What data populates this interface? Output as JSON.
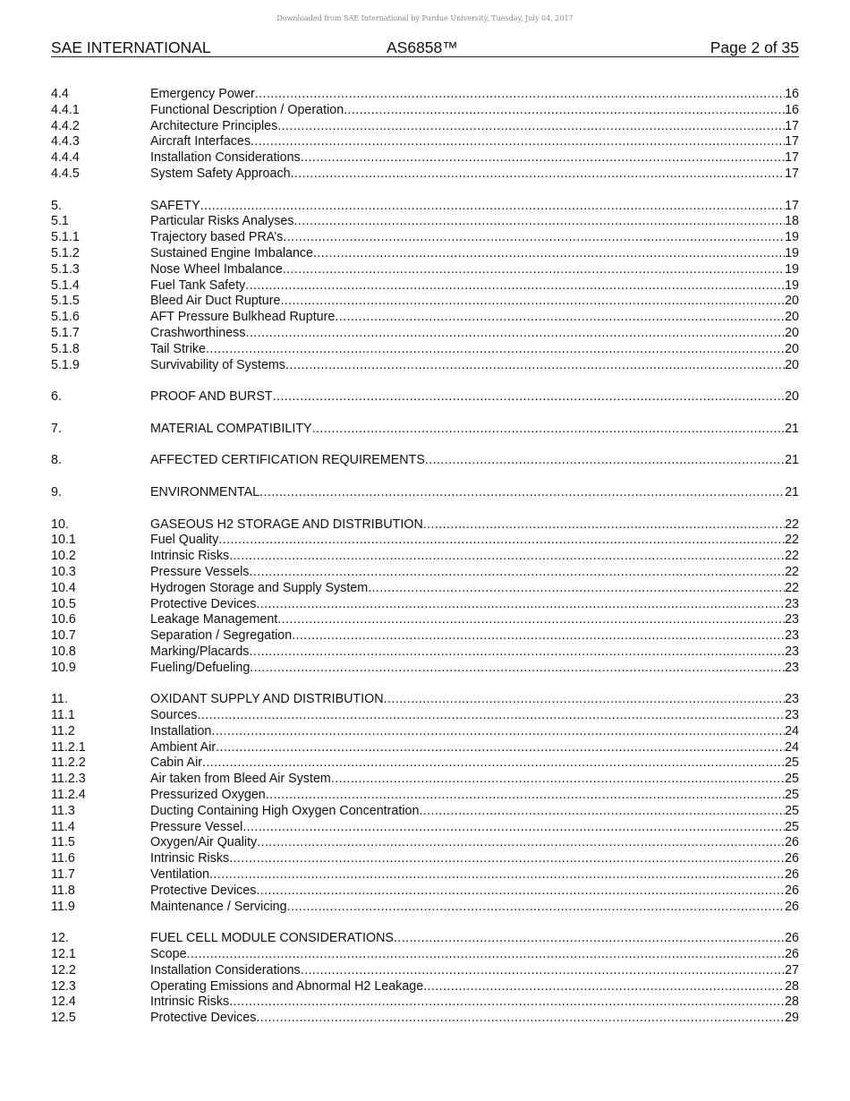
{
  "watermark": "Downloaded from SAE International by Purdue University, Tuesday, July 04, 2017",
  "header": {
    "org": "SAE INTERNATIONAL",
    "doc": "AS6858™",
    "page": "Page 2 of 35"
  },
  "toc": [
    {
      "n": "4.4",
      "t": "Emergency Power",
      "p": "16"
    },
    {
      "n": "4.4.1",
      "t": "Functional Description / Operation",
      "p": "16"
    },
    {
      "n": "4.4.2",
      "t": "Architecture Principles",
      "p": "17"
    },
    {
      "n": "4.4.3",
      "t": "Aircraft Interfaces",
      "p": "17"
    },
    {
      "n": "4.4.4",
      "t": "Installation Considerations",
      "p": "17"
    },
    {
      "n": "4.4.5",
      "t": "System Safety Approach",
      "p": "17"
    },
    {},
    {
      "n": "5.",
      "t": "SAFETY",
      "p": "17"
    },
    {
      "n": "5.1",
      "t": "Particular Risks Analyses",
      "p": "18"
    },
    {
      "n": "5.1.1",
      "t": "Trajectory based PRA’s",
      "p": "19"
    },
    {
      "n": "5.1.2",
      "t": "Sustained Engine Imbalance",
      "p": "19"
    },
    {
      "n": "5.1.3",
      "t": "Nose Wheel Imbalance",
      "p": "19"
    },
    {
      "n": "5.1.4",
      "t": "Fuel Tank Safety",
      "p": "19"
    },
    {
      "n": "5.1.5",
      "t": "Bleed Air Duct Rupture",
      "p": "20"
    },
    {
      "n": "5.1.6",
      "t": "AFT Pressure Bulkhead Rupture",
      "p": "20"
    },
    {
      "n": "5.1.7",
      "t": "Crashworthiness",
      "p": "20"
    },
    {
      "n": "5.1.8",
      "t": "Tail Strike",
      "p": "20"
    },
    {
      "n": "5.1.9",
      "t": "Survivability of Systems",
      "p": "20"
    },
    {},
    {
      "n": "6.",
      "t": "PROOF AND BURST",
      "p": "20"
    },
    {},
    {
      "n": "7.",
      "t": "MATERIAL COMPATIBILITY",
      "p": "21"
    },
    {},
    {
      "n": "8.",
      "t": "AFFECTED CERTIFICATION REQUIREMENTS",
      "p": "21"
    },
    {},
    {
      "n": "9.",
      "t": "ENVIRONMENTAL",
      "p": "21"
    },
    {},
    {
      "n": "10.",
      "t": "GASEOUS H2 STORAGE AND DISTRIBUTION",
      "p": "22"
    },
    {
      "n": "10.1",
      "t": "Fuel Quality",
      "p": "22"
    },
    {
      "n": "10.2",
      "t": "Intrinsic Risks",
      "p": "22"
    },
    {
      "n": "10.3",
      "t": "Pressure Vessels",
      "p": "22"
    },
    {
      "n": "10.4",
      "t": "Hydrogen Storage and Supply System",
      "p": "22"
    },
    {
      "n": "10.5",
      "t": "Protective Devices",
      "p": "23"
    },
    {
      "n": "10.6",
      "t": "Leakage Management",
      "p": "23"
    },
    {
      "n": "10.7",
      "t": "Separation / Segregation",
      "p": "23"
    },
    {
      "n": "10.8",
      "t": "Marking/Placards",
      "p": "23"
    },
    {
      "n": "10.9",
      "t": "Fueling/Defueling",
      "p": "23"
    },
    {},
    {
      "n": "11.",
      "t": "OXIDANT SUPPLY AND DISTRIBUTION",
      "p": "23"
    },
    {
      "n": "11.1",
      "t": "Sources",
      "p": "23"
    },
    {
      "n": "11.2",
      "t": "Installation",
      "p": "24"
    },
    {
      "n": "11.2.1",
      "t": "Ambient Air",
      "p": "24"
    },
    {
      "n": "11.2.2",
      "t": "Cabin Air",
      "p": "25"
    },
    {
      "n": "11.2.3",
      "t": "Air taken from Bleed Air System",
      "p": "25"
    },
    {
      "n": "11.2.4",
      "t": "Pressurized Oxygen",
      "p": "25"
    },
    {
      "n": "11.3",
      "t": "Ducting Containing High Oxygen Concentration",
      "p": "25"
    },
    {
      "n": "11.4",
      "t": "Pressure Vessel",
      "p": "25"
    },
    {
      "n": "11.5",
      "t": "Oxygen/Air Quality",
      "p": "26"
    },
    {
      "n": "11.6",
      "t": "Intrinsic Risks",
      "p": "26"
    },
    {
      "n": "11.7",
      "t": "Ventilation",
      "p": "26"
    },
    {
      "n": "11.8",
      "t": "Protective Devices",
      "p": "26"
    },
    {
      "n": "11.9",
      "t": "Maintenance / Servicing",
      "p": "26"
    },
    {},
    {
      "n": "12.",
      "t": "FUEL CELL MODULE CONSIDERATIONS",
      "p": "26"
    },
    {
      "n": "12.1",
      "t": "Scope",
      "p": "26"
    },
    {
      "n": "12.2",
      "t": "Installation Considerations",
      "p": "27"
    },
    {
      "n": "12.3",
      "t": "Operating Emissions and Abnormal H2 Leakage",
      "p": "28"
    },
    {
      "n": "12.4",
      "t": "Intrinsic Risks",
      "p": "28"
    },
    {
      "n": "12.5",
      "t": "Protective Devices",
      "p": "29"
    }
  ]
}
